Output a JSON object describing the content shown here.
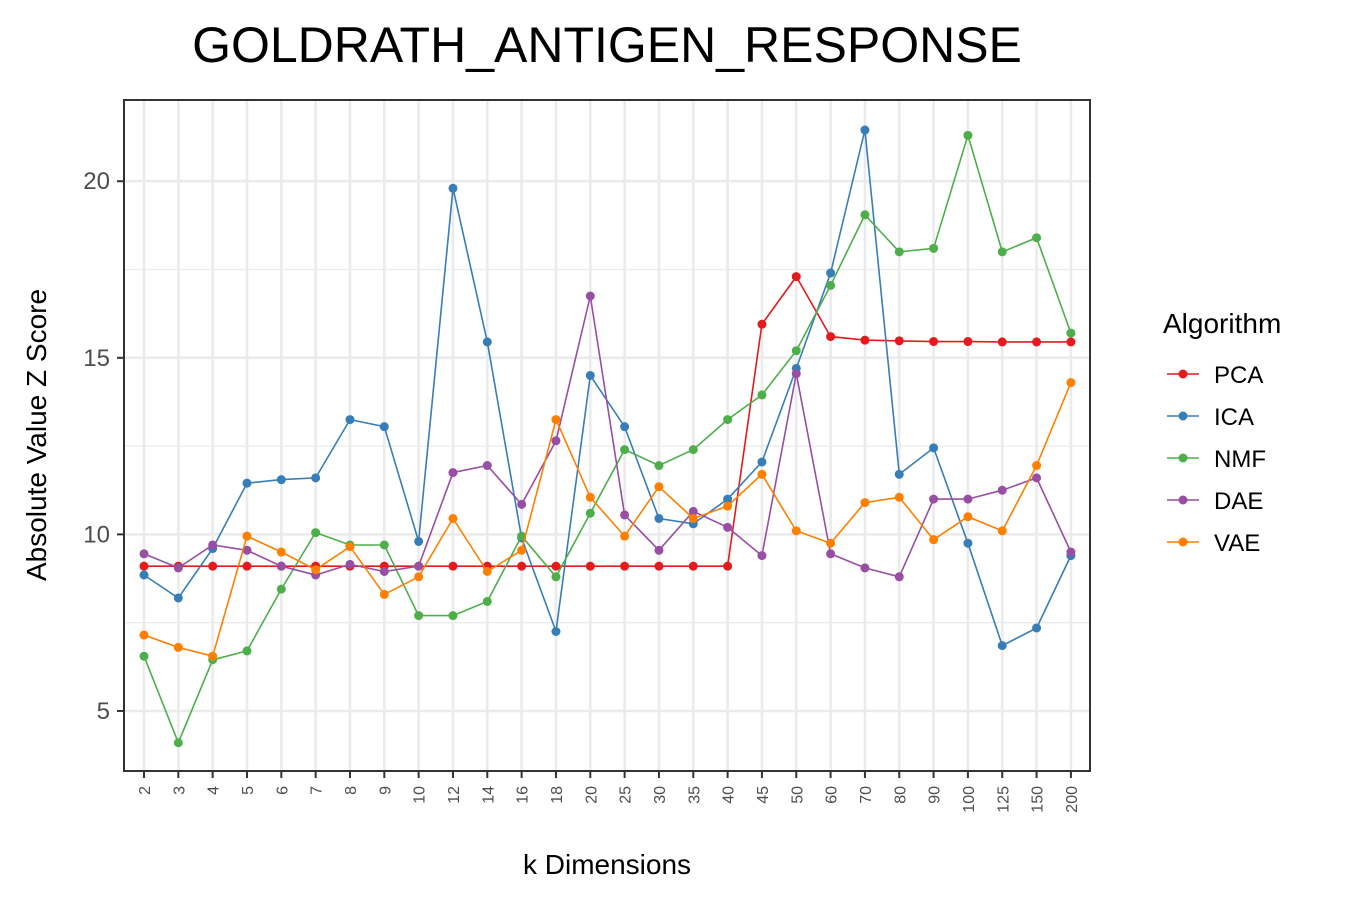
{
  "chart_data": {
    "type": "line",
    "title": "GOLDRATH_ANTIGEN_RESPONSE",
    "xlabel": "k Dimensions",
    "ylabel": "Absolute Value Z Score",
    "ylim": [
      3.3,
      22.3
    ],
    "yticks": [
      5,
      10,
      15,
      20
    ],
    "grid": true,
    "legend": {
      "title": "Algorithm",
      "position": "right"
    },
    "categories": [
      "2",
      "3",
      "4",
      "5",
      "6",
      "7",
      "8",
      "9",
      "10",
      "12",
      "14",
      "16",
      "18",
      "20",
      "25",
      "30",
      "35",
      "40",
      "45",
      "50",
      "60",
      "70",
      "80",
      "90",
      "100",
      "125",
      "150",
      "200"
    ],
    "series": [
      {
        "name": "PCA",
        "color": "#E41A1C",
        "values": [
          9.1,
          9.1,
          9.1,
          9.1,
          9.1,
          9.1,
          9.1,
          9.1,
          9.1,
          9.1,
          9.1,
          9.1,
          9.1,
          9.1,
          9.1,
          9.1,
          9.1,
          9.1,
          15.95,
          17.3,
          15.6,
          15.5,
          15.48,
          15.46,
          15.46,
          15.45,
          15.45,
          15.45
        ]
      },
      {
        "name": "ICA",
        "color": "#377EB8",
        "values": [
          8.85,
          8.2,
          9.6,
          11.45,
          11.55,
          11.6,
          13.25,
          13.05,
          9.8,
          19.8,
          15.45,
          9.9,
          7.25,
          14.5,
          13.05,
          10.45,
          10.3,
          11.0,
          12.05,
          14.7,
          17.4,
          21.45,
          11.7,
          12.45,
          9.75,
          6.85,
          7.35,
          9.4
        ]
      },
      {
        "name": "NMF",
        "color": "#4DAF4A",
        "values": [
          6.55,
          4.1,
          6.45,
          6.7,
          8.45,
          10.05,
          9.7,
          9.7,
          7.7,
          7.7,
          8.1,
          9.95,
          8.8,
          10.6,
          12.4,
          11.95,
          12.4,
          13.25,
          13.95,
          15.2,
          17.05,
          19.05,
          18.0,
          18.1,
          21.3,
          18.0,
          18.4,
          15.7
        ]
      },
      {
        "name": "DAE",
        "color": "#984EA3",
        "values": [
          9.45,
          9.05,
          9.7,
          9.55,
          9.1,
          8.85,
          9.15,
          8.95,
          9.1,
          11.75,
          11.95,
          10.85,
          12.65,
          16.75,
          10.55,
          9.55,
          10.65,
          10.2,
          9.4,
          14.55,
          9.45,
          9.05,
          8.8,
          11.0,
          11.0,
          11.25,
          11.6,
          9.5
        ]
      },
      {
        "name": "VAE",
        "color": "#FF7F00",
        "values": [
          7.15,
          6.8,
          6.55,
          9.95,
          9.5,
          9.0,
          9.65,
          8.3,
          8.8,
          10.45,
          8.95,
          9.55,
          13.25,
          11.05,
          9.95,
          11.35,
          10.45,
          10.8,
          11.7,
          10.1,
          9.75,
          10.9,
          11.05,
          9.85,
          10.5,
          10.1,
          11.95,
          14.3
        ]
      }
    ]
  }
}
